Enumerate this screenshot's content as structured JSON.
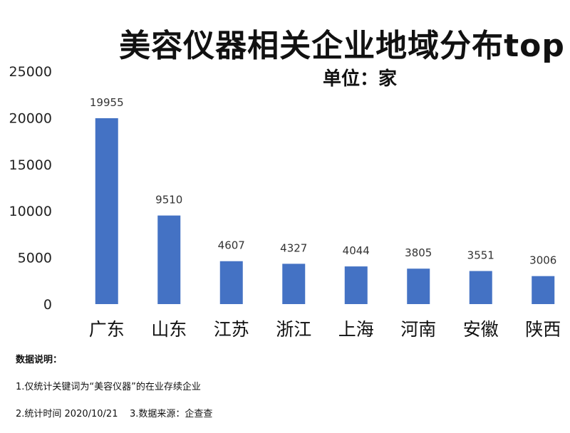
{
  "chart_data": {
    "type": "bar",
    "title": "美容仪器相关企业地域分布top",
    "subtitle": "单位：家",
    "categories": [
      "广东",
      "山东",
      "江苏",
      "浙江",
      "上海",
      "河南",
      "安徽",
      "陕西"
    ],
    "values": [
      19955,
      9510,
      4607,
      4327,
      4044,
      3805,
      3551,
      3006
    ],
    "ylim": [
      0,
      25000
    ],
    "yticks": [
      0,
      5000,
      10000,
      15000,
      20000,
      25000
    ],
    "grid": false,
    "legend": "none",
    "bar_color": "#4472C4"
  },
  "notes": {
    "heading": "数据说明：",
    "line1": "1.仅统计关键词为“美容仪器”的在业存续企业",
    "line2": "2.统计时间 2020/10/21    3.数据来源：企查查"
  }
}
